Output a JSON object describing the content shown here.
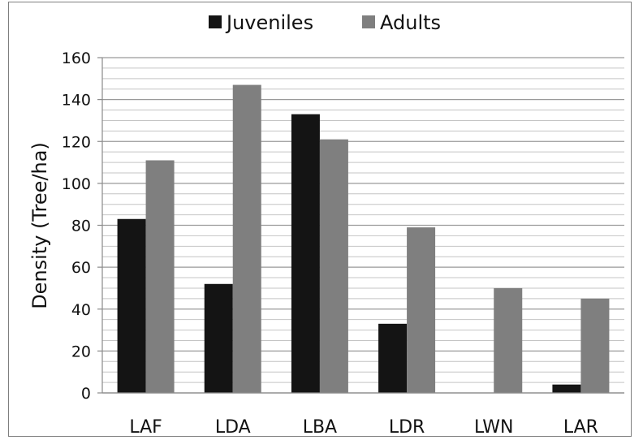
{
  "chart_data": {
    "type": "bar",
    "title": "",
    "xlabel": "",
    "ylabel": "Density (Tree/ha)",
    "ylim": [
      0,
      160
    ],
    "y_major_ticks": [
      0,
      20,
      40,
      60,
      80,
      100,
      120,
      140,
      160
    ],
    "minor_gridline_step": 5,
    "grid": true,
    "legend_position": "top",
    "categories": [
      "LAF",
      "LDA",
      "LBA",
      "LDR",
      "LWN",
      "LAR"
    ],
    "series": [
      {
        "name": "Juveniles",
        "color": "#141414",
        "values": [
          83,
          52,
          133,
          33,
          0,
          4
        ]
      },
      {
        "name": "Adults",
        "color": "#7f7f7f",
        "values": [
          111,
          147,
          121,
          79,
          50,
          45
        ]
      }
    ]
  }
}
